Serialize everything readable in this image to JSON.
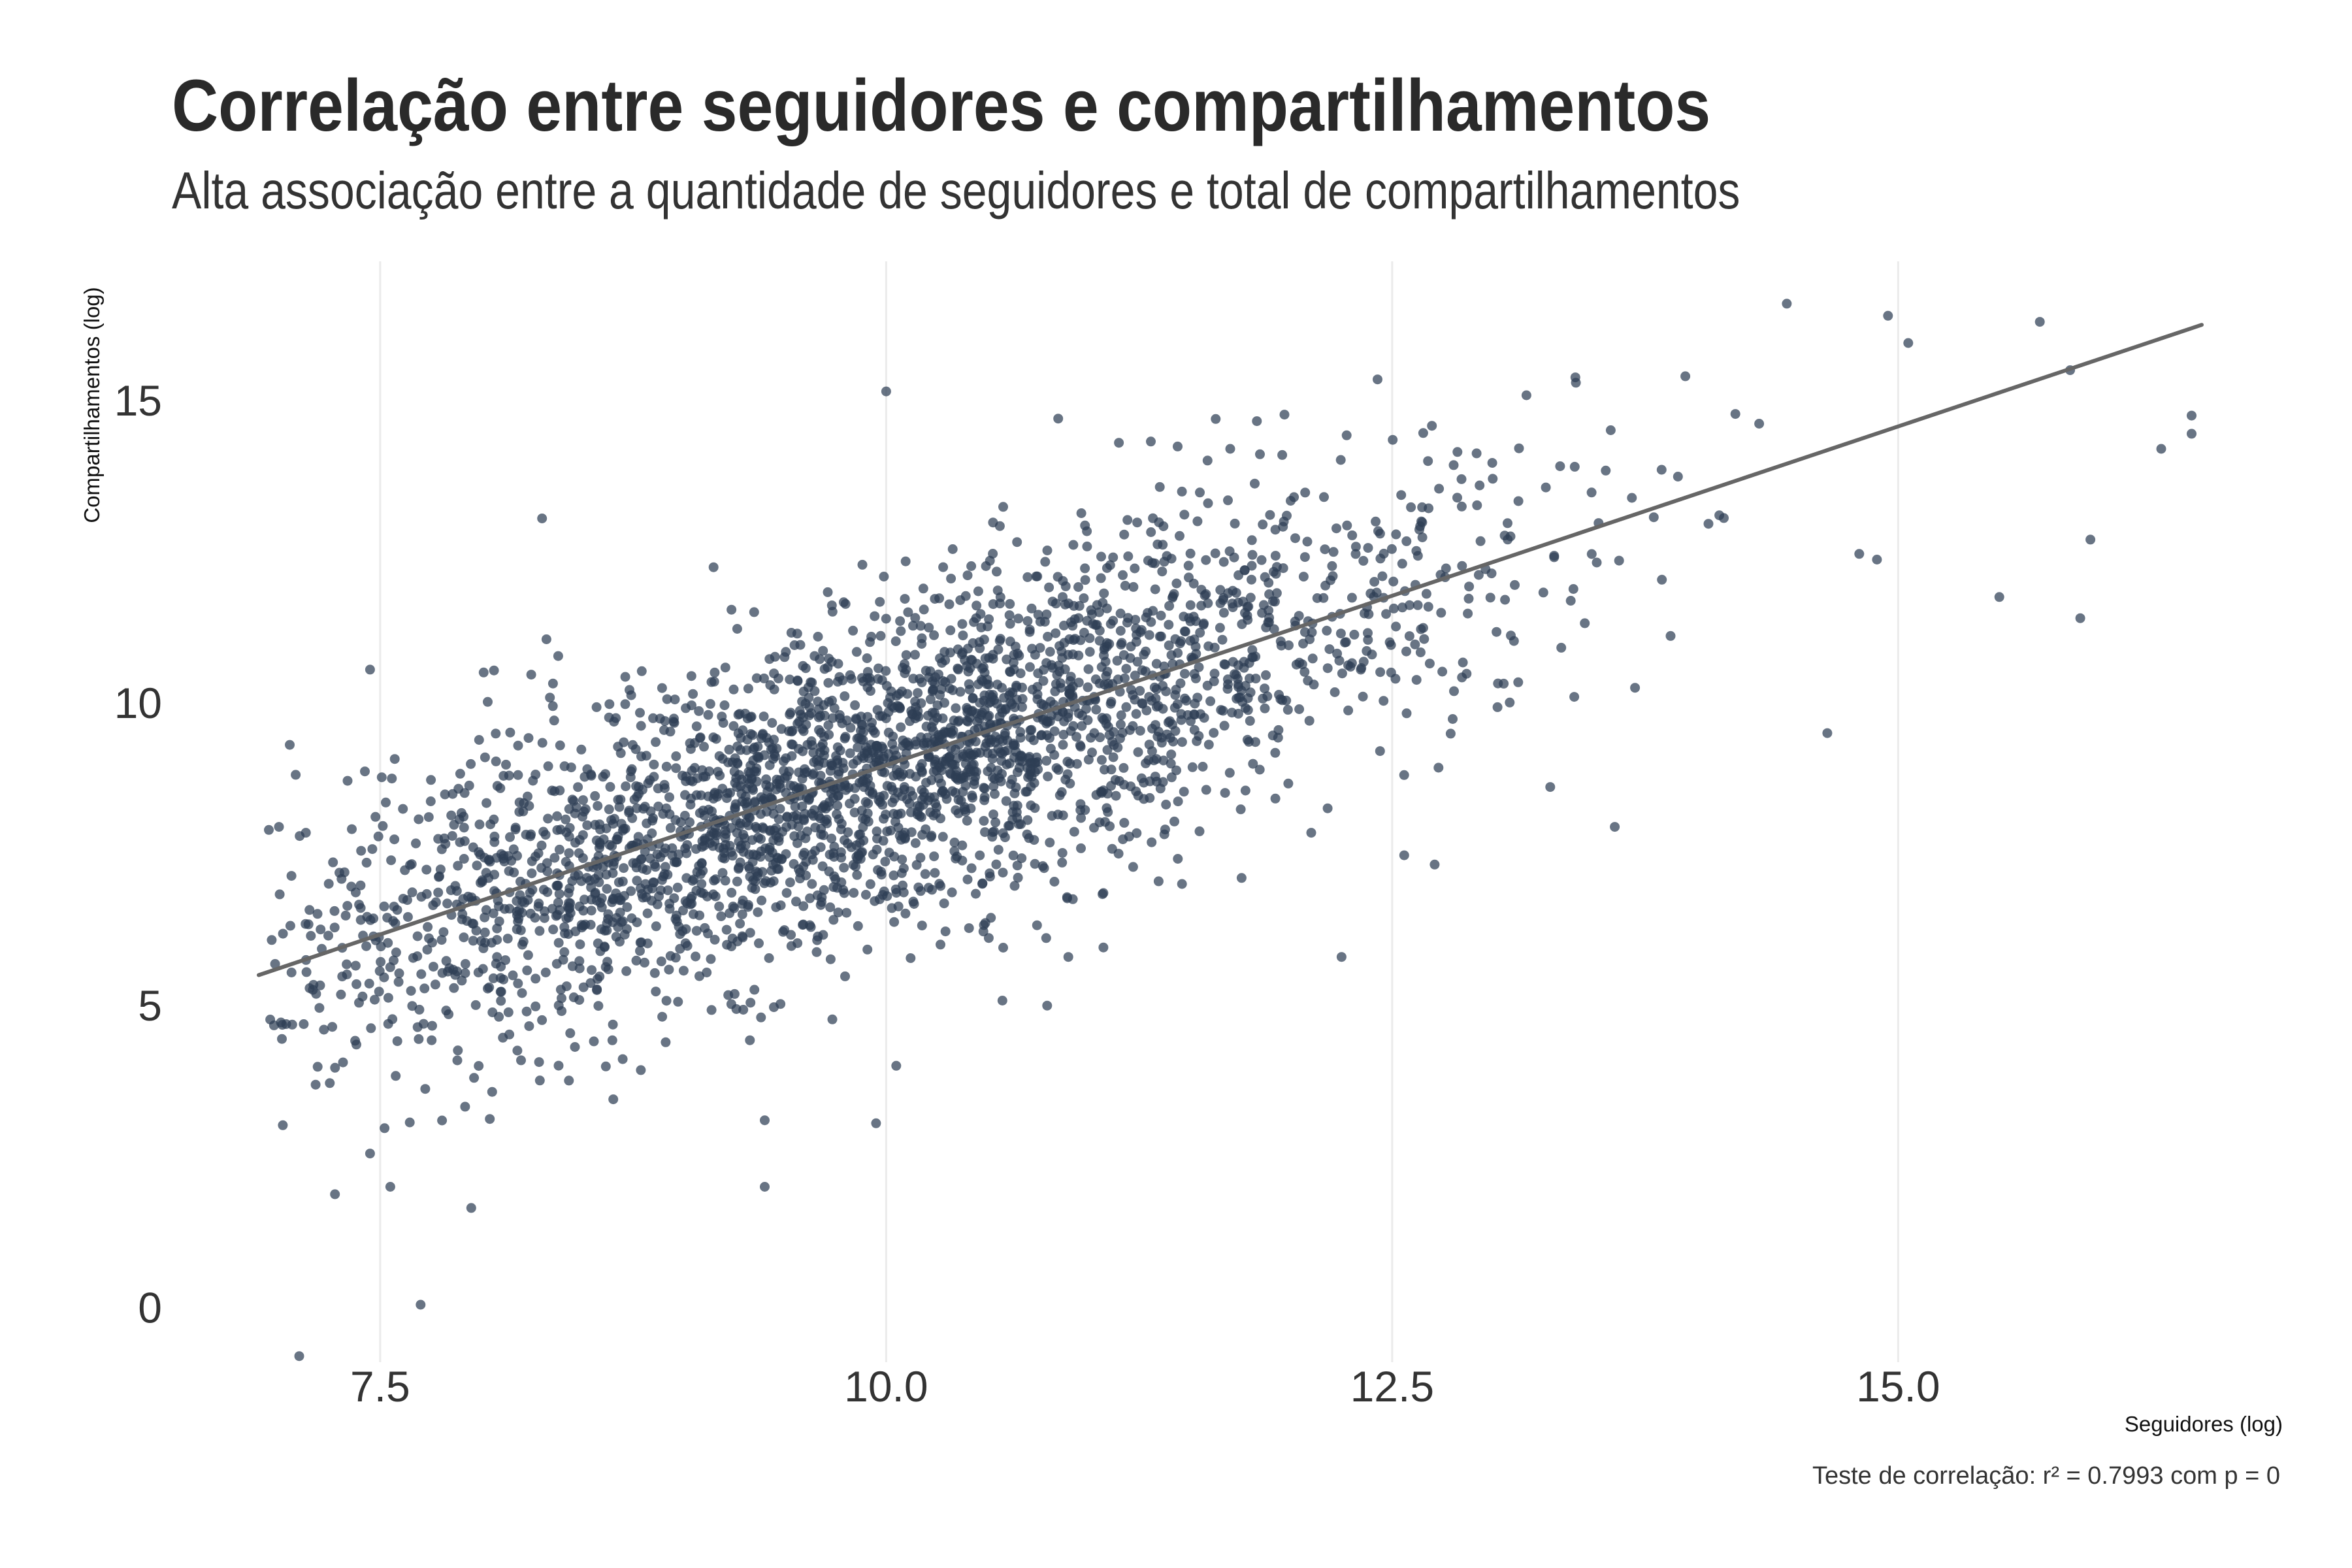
{
  "title": "Correlação entre seguidores e compartilhamentos",
  "subtitle": "Alta associação entre a quantidade de seguidores e total de compartilhamentos",
  "caption": "Teste de correlação: r² =  0.7993 com p =  0",
  "colors": {
    "point": "#2e3e55",
    "line": "#666666",
    "grid": "#ebebeb",
    "text": "#2b2b2b"
  },
  "chart_data": {
    "type": "scatter",
    "title": "Correlação entre seguidores e compartilhamentos",
    "subtitle": "Alta associação entre a quantidade de seguidores e total de compartilhamentos",
    "xlabel": "Seguidores (log)",
    "ylabel": "Compartilhamentos (log)",
    "xlim": [
      6.9,
      16.5
    ],
    "ylim": [
      -0.9,
      17.3
    ],
    "x_ticks": [
      7.5,
      10.0,
      12.5,
      15.0
    ],
    "x_tick_labels": [
      "7.5",
      "10.0",
      "12.5",
      "15.0"
    ],
    "y_ticks": [
      0,
      5,
      10,
      15
    ],
    "y_tick_labels": [
      "0",
      "5",
      "10",
      "15"
    ],
    "grid": "vertical major lines only",
    "n_points": 3000,
    "trend_line": {
      "type": "linear fit",
      "from": [
        6.9,
        5.5
      ],
      "to": [
        16.5,
        16.25
      ]
    },
    "r_squared": 0.7993,
    "p_value": 0,
    "notable_points": [
      [
        6.95,
        7.9
      ],
      [
        7.0,
        7.95
      ],
      [
        7.1,
        -0.8
      ],
      [
        7.7,
        0.05
      ],
      [
        7.95,
        1.65
      ],
      [
        7.55,
        2.0
      ],
      [
        7.45,
        2.55
      ],
      [
        7.45,
        10.55
      ],
      [
        8.3,
        13.05
      ],
      [
        10.0,
        15.15
      ],
      [
        10.85,
        14.7
      ],
      [
        11.15,
        14.3
      ],
      [
        11.7,
        14.2
      ],
      [
        12.25,
        5.8
      ],
      [
        13.6,
        7.95
      ],
      [
        13.4,
        10.1
      ],
      [
        13.7,
        10.25
      ],
      [
        14.65,
        9.5
      ],
      [
        14.45,
        16.6
      ],
      [
        14.95,
        16.4
      ],
      [
        15.7,
        16.3
      ],
      [
        15.05,
        15.95
      ],
      [
        15.85,
        15.5
      ],
      [
        16.45,
        14.75
      ],
      [
        16.3,
        14.2
      ],
      [
        16.45,
        14.45
      ],
      [
        15.95,
        12.7
      ],
      [
        15.9,
        11.4
      ],
      [
        15.5,
        11.75
      ],
      [
        9.4,
        3.1
      ],
      [
        9.4,
        2.0
      ],
      [
        9.95,
        3.05
      ],
      [
        10.05,
        4.0
      ],
      [
        10.9,
        5.8
      ]
    ]
  }
}
